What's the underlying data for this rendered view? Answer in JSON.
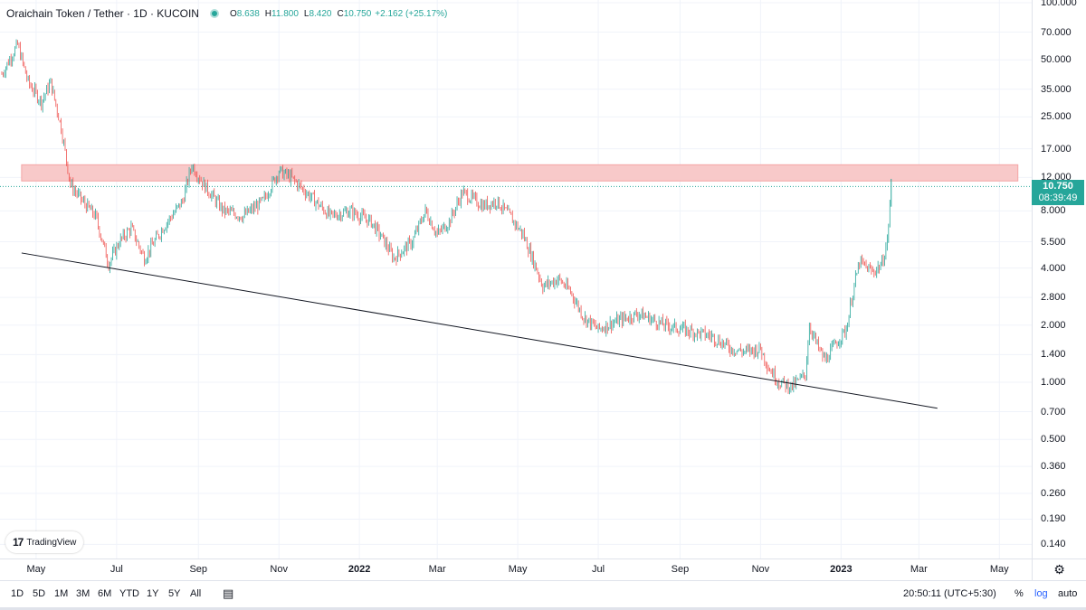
{
  "legend": {
    "title": "Oraichain Token / Tether · 1D · KUCOIN",
    "open_label": "O",
    "open": "8.638",
    "high_label": "H",
    "high": "11.800",
    "low_label": "L",
    "low": "8.420",
    "close_label": "C",
    "close": "10.750",
    "change": "+2.162 (+25.17%)"
  },
  "colors": {
    "up": "#26a69a",
    "down": "#ef5350",
    "zone": "#f8c9c9",
    "trendline": "#131722",
    "grid": "#f0f3fa"
  },
  "price_label": {
    "price": "10.750",
    "countdown": "08:39:49"
  },
  "watermark": {
    "text": "TradingView",
    "logo_icon": "tradingview-logo-icon"
  },
  "chart_data": {
    "type": "candlestick",
    "title": "Oraichain Token / Tether · 1D · KUCOIN",
    "yscale": "log",
    "ylim": [
      0.12,
      110
    ],
    "xlim": [
      "2021-04-05",
      "2023-05-20"
    ],
    "y_ticks": [
      "100.000",
      "70.000",
      "50.000",
      "35.000",
      "25.000",
      "17.000",
      "12.000",
      "8.000",
      "5.500",
      "4.000",
      "2.800",
      "2.000",
      "1.400",
      "1.000",
      "0.700",
      "0.500",
      "0.360",
      "0.260",
      "0.190",
      "0.140"
    ],
    "x_ticks": [
      {
        "label": "May",
        "date": "2021-05-01"
      },
      {
        "label": "Jul",
        "date": "2021-07-01"
      },
      {
        "label": "Sep",
        "date": "2021-09-01"
      },
      {
        "label": "Nov",
        "date": "2021-11-01"
      },
      {
        "label": "2022",
        "date": "2022-01-01",
        "bold": true
      },
      {
        "label": "Mar",
        "date": "2022-03-01"
      },
      {
        "label": "May",
        "date": "2022-05-01"
      },
      {
        "label": "Jul",
        "date": "2022-07-01"
      },
      {
        "label": "Sep",
        "date": "2022-09-01"
      },
      {
        "label": "Nov",
        "date": "2022-11-01"
      },
      {
        "label": "2023",
        "date": "2023-01-01",
        "bold": true
      },
      {
        "label": "Mar",
        "date": "2023-03-01"
      },
      {
        "label": "May",
        "date": "2023-05-01"
      }
    ],
    "price_path": [
      [
        "2021-04-05",
        42
      ],
      [
        "2021-04-12",
        52
      ],
      [
        "2021-04-17",
        60
      ],
      [
        "2021-04-25",
        38
      ],
      [
        "2021-05-05",
        30
      ],
      [
        "2021-05-12",
        38
      ],
      [
        "2021-05-20",
        22
      ],
      [
        "2021-05-27",
        11
      ],
      [
        "2021-06-05",
        9
      ],
      [
        "2021-06-15",
        7.5
      ],
      [
        "2021-06-25",
        4.2
      ],
      [
        "2021-07-03",
        5.5
      ],
      [
        "2021-07-12",
        6.5
      ],
      [
        "2021-07-22",
        4.5
      ],
      [
        "2021-08-05",
        6.5
      ],
      [
        "2021-08-20",
        9
      ],
      [
        "2021-08-27",
        14
      ],
      [
        "2021-09-05",
        11
      ],
      [
        "2021-09-20",
        8
      ],
      [
        "2021-10-05",
        7.5
      ],
      [
        "2021-10-20",
        9
      ],
      [
        "2021-11-01",
        13
      ],
      [
        "2021-11-10",
        12
      ],
      [
        "2021-11-25",
        9.5
      ],
      [
        "2021-12-10",
        7.5
      ],
      [
        "2021-12-25",
        8
      ],
      [
        "2022-01-10",
        7
      ],
      [
        "2022-01-20",
        5.5
      ],
      [
        "2022-01-27",
        4.5
      ],
      [
        "2022-02-10",
        5.5
      ],
      [
        "2022-02-20",
        8
      ],
      [
        "2022-03-01",
        6
      ],
      [
        "2022-03-10",
        7
      ],
      [
        "2022-03-20",
        10
      ],
      [
        "2022-04-05",
        8.5
      ],
      [
        "2022-04-15",
        9
      ],
      [
        "2022-04-25",
        7.5
      ],
      [
        "2022-05-05",
        6
      ],
      [
        "2022-05-15",
        4
      ],
      [
        "2022-05-20",
        3.2
      ],
      [
        "2022-06-01",
        3.5
      ],
      [
        "2022-06-10",
        3
      ],
      [
        "2022-06-20",
        2.2
      ],
      [
        "2022-07-01",
        1.9
      ],
      [
        "2022-07-15",
        2.1
      ],
      [
        "2022-08-01",
        2.3
      ],
      [
        "2022-08-20",
        2.0
      ],
      [
        "2022-09-10",
        1.85
      ],
      [
        "2022-09-25",
        1.75
      ],
      [
        "2022-10-10",
        1.5
      ],
      [
        "2022-10-20",
        1.45
      ],
      [
        "2022-11-01",
        1.5
      ],
      [
        "2022-11-07",
        1.2
      ],
      [
        "2022-11-15",
        1.0
      ],
      [
        "2022-11-25",
        0.95
      ],
      [
        "2022-12-05",
        1.1
      ],
      [
        "2022-12-08",
        2.0
      ],
      [
        "2022-12-15",
        1.5
      ],
      [
        "2022-12-20",
        1.3
      ],
      [
        "2022-12-28",
        1.6
      ],
      [
        "2023-01-05",
        1.9
      ],
      [
        "2023-01-10",
        3.0
      ],
      [
        "2023-01-15",
        4.3
      ],
      [
        "2023-01-25",
        3.8
      ],
      [
        "2023-02-01",
        4.2
      ],
      [
        "2023-02-05",
        5.5
      ],
      [
        "2023-02-08",
        10.75
      ]
    ],
    "zone": {
      "low": 11.5,
      "high": 14.0,
      "start": "2021-04-20",
      "end": "2023-05-15"
    },
    "trendline": [
      [
        "2021-04-20",
        4.8
      ],
      [
        "2023-03-15",
        0.73
      ]
    ],
    "last": {
      "date": "2023-02-08",
      "open": 8.638,
      "high": 11.8,
      "low": 8.42,
      "close": 10.75
    },
    "grid": true
  },
  "time_ranges": [
    "1D",
    "5D",
    "1M",
    "3M",
    "6M",
    "YTD",
    "1Y",
    "5Y",
    "All"
  ],
  "bottom_right": {
    "clock": "20:50:11 (UTC+5:30)",
    "percent": "%",
    "log": "log",
    "auto": "auto"
  }
}
